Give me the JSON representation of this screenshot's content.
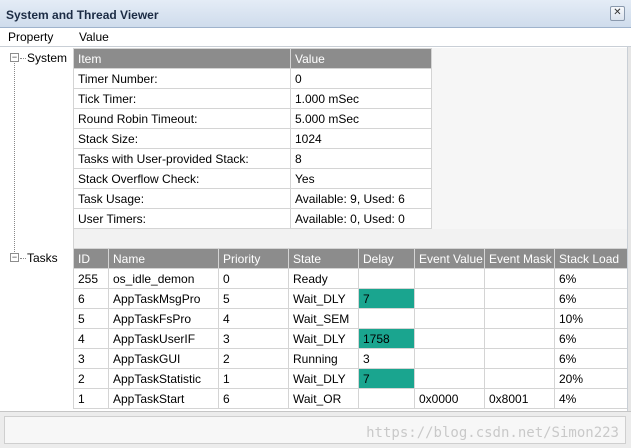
{
  "window": {
    "title": "System and Thread Viewer",
    "close_glyph": "✕"
  },
  "header": {
    "col_property": "Property",
    "col_value": "Value"
  },
  "tree": {
    "system": {
      "label": "System",
      "expander": "−"
    },
    "tasks": {
      "label": "Tasks",
      "expander": "−"
    }
  },
  "system_table": {
    "headers": [
      "Item",
      "Value"
    ],
    "rows": [
      [
        "Timer Number:",
        "0"
      ],
      [
        "Tick Timer:",
        "1.000 mSec"
      ],
      [
        "Round Robin Timeout:",
        "5.000 mSec"
      ],
      [
        "Stack Size:",
        "1024"
      ],
      [
        "Tasks with User-provided Stack:",
        "8"
      ],
      [
        "Stack Overflow Check:",
        "Yes"
      ],
      [
        "Task Usage:",
        "Available: 9, Used: 6"
      ],
      [
        "User Timers:",
        "Available: 0, Used: 0"
      ]
    ]
  },
  "tasks_table": {
    "headers": [
      "ID",
      "Name",
      "Priority",
      "State",
      "Delay",
      "Event Value",
      "Event Mask",
      "Stack Load"
    ],
    "rows": [
      [
        "255",
        "os_idle_demon",
        "0",
        "Ready",
        "",
        "",
        "",
        "6%"
      ],
      [
        "6",
        "AppTaskMsgPro",
        "5",
        "Wait_DLY",
        "7",
        "",
        "",
        "6%"
      ],
      [
        "5",
        "AppTaskFsPro",
        "4",
        "Wait_SEM",
        "",
        "",
        "",
        "10%"
      ],
      [
        "4",
        "AppTaskUserIF",
        "3",
        "Wait_DLY",
        "1758",
        "",
        "",
        "6%"
      ],
      [
        "3",
        "AppTaskGUI",
        "2",
        "Running",
        "3",
        "",
        "",
        "6%"
      ],
      [
        "2",
        "AppTaskStatistic",
        "1",
        "Wait_DLY",
        "7",
        "",
        "",
        "20%"
      ],
      [
        "1",
        "AppTaskStart",
        "6",
        "Wait_OR",
        "",
        "0x0000",
        "0x8001",
        "4%"
      ]
    ],
    "highlight_color": "#1aa58f"
  },
  "status": {
    "watermark": "https://blog.csdn.net/Simon223"
  }
}
